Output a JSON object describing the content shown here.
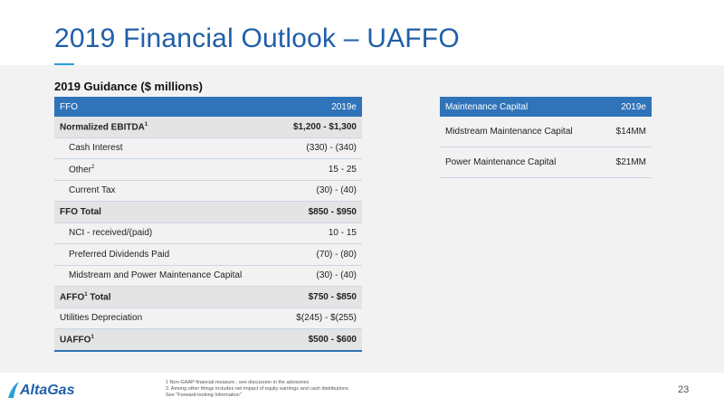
{
  "title": "2019 Financial Outlook – UAFFO",
  "subtitle": "2019 Guidance ($ millions)",
  "ffo_table": {
    "header": {
      "label": "FFO",
      "value": "2019e"
    },
    "rows": [
      {
        "label": "Normalized EBITDA",
        "sup": "1",
        "value": "$1,200 - $1,300",
        "style": "bold"
      },
      {
        "label": "Cash Interest",
        "sup": "",
        "value": "(330) - (340)",
        "style": "indent"
      },
      {
        "label": "Other",
        "sup": "2",
        "value": "15 - 25",
        "style": "indent"
      },
      {
        "label": "Current Tax",
        "sup": "",
        "value": "(30) - (40)",
        "style": "indent"
      },
      {
        "label": "FFO Total",
        "sup": "",
        "value": "$850 - $950",
        "style": "bold"
      },
      {
        "label": "NCI - received/(paid)",
        "sup": "",
        "value": "10 - 15",
        "style": "indent"
      },
      {
        "label": "Preferred Dividends Paid",
        "sup": "",
        "value": "(70) - (80)",
        "style": "indent"
      },
      {
        "label": "Midstream and Power Maintenance Capital",
        "sup": "",
        "value": "(30) - (40)",
        "style": "indent"
      },
      {
        "label": "AFFO",
        "sup": "1",
        "label_suffix": " Total",
        "value": "$750 - $850",
        "style": "bold"
      },
      {
        "label": "Utilities Depreciation",
        "sup": "",
        "value": "$(245) - $(255)",
        "style": ""
      },
      {
        "label": "UAFFO",
        "sup": "1",
        "value": "$500 - $600",
        "style": "bold last"
      }
    ]
  },
  "maintenance_table": {
    "header": {
      "label": "Maintenance Capital",
      "value": "2019e"
    },
    "rows": [
      {
        "label": "Midstream Maintenance Capital",
        "value": "$14MM"
      },
      {
        "label": "Power Maintenance Capital",
        "value": "$21MM"
      }
    ]
  },
  "footer": {
    "logo_text": "AltaGas",
    "footnotes": [
      "1 Non-GAAP financial measure ; see discussion in the advisories",
      "2. Among other things includes net impact of equity earnings and cash distributions.",
      "See \"Forward-looking Information\""
    ],
    "page_number": "23"
  },
  "colors": {
    "accent": "#1f5fa8",
    "header_bg": "#2f73b9",
    "rule": "#2a9fd6"
  }
}
